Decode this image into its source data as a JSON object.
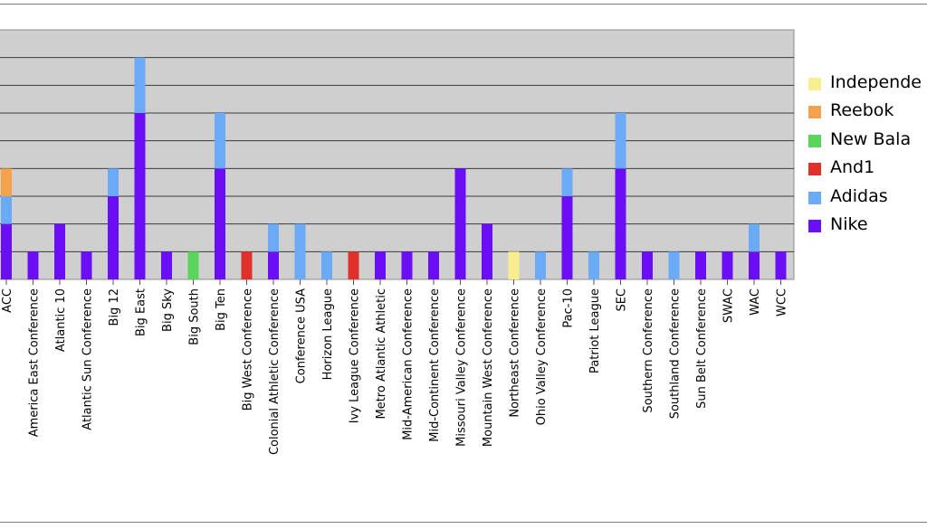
{
  "chart_data": {
    "type": "bar",
    "stacked": true,
    "categories": [
      "ACC",
      "America East Conference",
      "Atlantic 10",
      "Atlantic Sun Conference",
      "Big 12",
      "Big East",
      "Big Sky",
      "Big South",
      "Big Ten",
      "Big West Conference",
      "Colonial Athletic Conference",
      "Conference USA",
      "Horizon League",
      "Ivy League Conference",
      "Metro Atlantic Athletic",
      "Mid-American Conference",
      "Mid-Continent Conference",
      "Missouri Valley Conference",
      "Mountain West Conference",
      "Northeast Conference",
      "Ohio Valley Conference",
      "Pac-10",
      "Patriot League",
      "SEC",
      "Southern Conference",
      "Southland Conference",
      "Sun Belt Conference",
      "SWAC",
      "WAC",
      "WCC"
    ],
    "series": [
      {
        "name": "Nike",
        "color": "#6a0ff5",
        "values": [
          2,
          1,
          2,
          1,
          3,
          6,
          1,
          0,
          4,
          0,
          1,
          0,
          0,
          0,
          1,
          1,
          1,
          4,
          2,
          0,
          0,
          3,
          0,
          4,
          1,
          0,
          1,
          1,
          1,
          1
        ]
      },
      {
        "name": "Adidas",
        "color": "#6aaaf6",
        "values": [
          1,
          0,
          0,
          0,
          1,
          2,
          0,
          0,
          2,
          0,
          1,
          2,
          1,
          0,
          0,
          0,
          0,
          0,
          0,
          0,
          1,
          1,
          1,
          2,
          0,
          1,
          0,
          0,
          1,
          0
        ]
      },
      {
        "name": "And1",
        "color": "#e0302c",
        "values": [
          0,
          0,
          0,
          0,
          0,
          0,
          0,
          0,
          0,
          1,
          0,
          0,
          0,
          1,
          0,
          0,
          0,
          0,
          0,
          0,
          0,
          0,
          0,
          0,
          0,
          0,
          0,
          0,
          0,
          0
        ]
      },
      {
        "name": "New Balance",
        "color": "#5bd45e",
        "values": [
          0,
          0,
          0,
          0,
          0,
          0,
          0,
          1,
          0,
          0,
          0,
          0,
          0,
          0,
          0,
          0,
          0,
          0,
          0,
          0,
          0,
          0,
          0,
          0,
          0,
          0,
          0,
          0,
          0,
          0
        ]
      },
      {
        "name": "Reebok",
        "color": "#f5a24a",
        "values": [
          1,
          0,
          0,
          0,
          0,
          0,
          0,
          0,
          0,
          0,
          0,
          0,
          0,
          0,
          0,
          0,
          0,
          0,
          0,
          0,
          0,
          0,
          0,
          0,
          0,
          0,
          0,
          0,
          0,
          0
        ]
      },
      {
        "name": "Independent",
        "color": "#f8ee90",
        "values": [
          0,
          0,
          0,
          0,
          0,
          0,
          0,
          0,
          0,
          0,
          0,
          0,
          0,
          0,
          0,
          0,
          0,
          0,
          0,
          1,
          0,
          0,
          0,
          0,
          0,
          0,
          0,
          0,
          0,
          0
        ]
      }
    ],
    "ylim": [
      0,
      9
    ],
    "grid": true,
    "legend": {
      "position": "right",
      "entries": [
        "Independe",
        "Reebok",
        "New Bala",
        "And1",
        "Adidas",
        "Nike"
      ]
    },
    "plot_background": "#cfcfcf"
  }
}
